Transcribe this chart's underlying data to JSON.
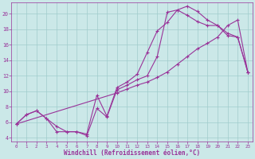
{
  "background_color": "#cbe8e8",
  "grid_color": "#a0cccc",
  "line_color": "#993399",
  "xlabel": "Windchill (Refroidissement éolien,°C)",
  "xlim": [
    -0.5,
    23.5
  ],
  "ylim": [
    3.5,
    21.5
  ],
  "xticks": [
    0,
    1,
    2,
    3,
    4,
    5,
    6,
    7,
    8,
    9,
    10,
    11,
    12,
    13,
    14,
    15,
    16,
    17,
    18,
    19,
    20,
    21,
    22,
    23
  ],
  "yticks": [
    4,
    6,
    8,
    10,
    12,
    14,
    16,
    18,
    20
  ],
  "curve1_x": [
    0,
    1,
    2,
    3,
    4,
    5,
    6,
    7,
    8,
    9,
    10,
    11,
    12,
    13,
    14,
    15,
    16,
    17,
    18,
    19,
    20,
    21,
    22,
    23
  ],
  "curve1_y": [
    5.8,
    7.0,
    7.5,
    6.5,
    4.8,
    4.8,
    4.8,
    4.5,
    9.5,
    6.8,
    10.5,
    11.2,
    12.2,
    15.0,
    17.8,
    18.9,
    20.5,
    21.0,
    20.3,
    19.2,
    18.5,
    17.2,
    17.0,
    12.5
  ],
  "curve2_x": [
    0,
    1,
    2,
    3,
    4,
    5,
    6,
    7,
    8,
    9,
    10,
    11,
    12,
    13,
    14,
    15,
    16,
    17,
    18,
    19,
    20,
    21,
    22,
    23
  ],
  "curve2_y": [
    5.8,
    7.0,
    7.5,
    6.5,
    5.5,
    4.8,
    4.8,
    4.3,
    7.8,
    6.7,
    10.2,
    10.8,
    11.5,
    12.0,
    14.5,
    20.2,
    20.5,
    19.8,
    19.0,
    18.5,
    18.5,
    17.5,
    17.0,
    12.5
  ],
  "curve3_x": [
    0,
    10,
    11,
    12,
    13,
    14,
    15,
    16,
    17,
    18,
    19,
    20,
    21,
    22,
    23
  ],
  "curve3_y": [
    5.8,
    9.8,
    10.3,
    10.8,
    11.2,
    11.8,
    12.5,
    13.5,
    14.5,
    15.5,
    16.2,
    17.0,
    18.5,
    19.2,
    12.5
  ]
}
